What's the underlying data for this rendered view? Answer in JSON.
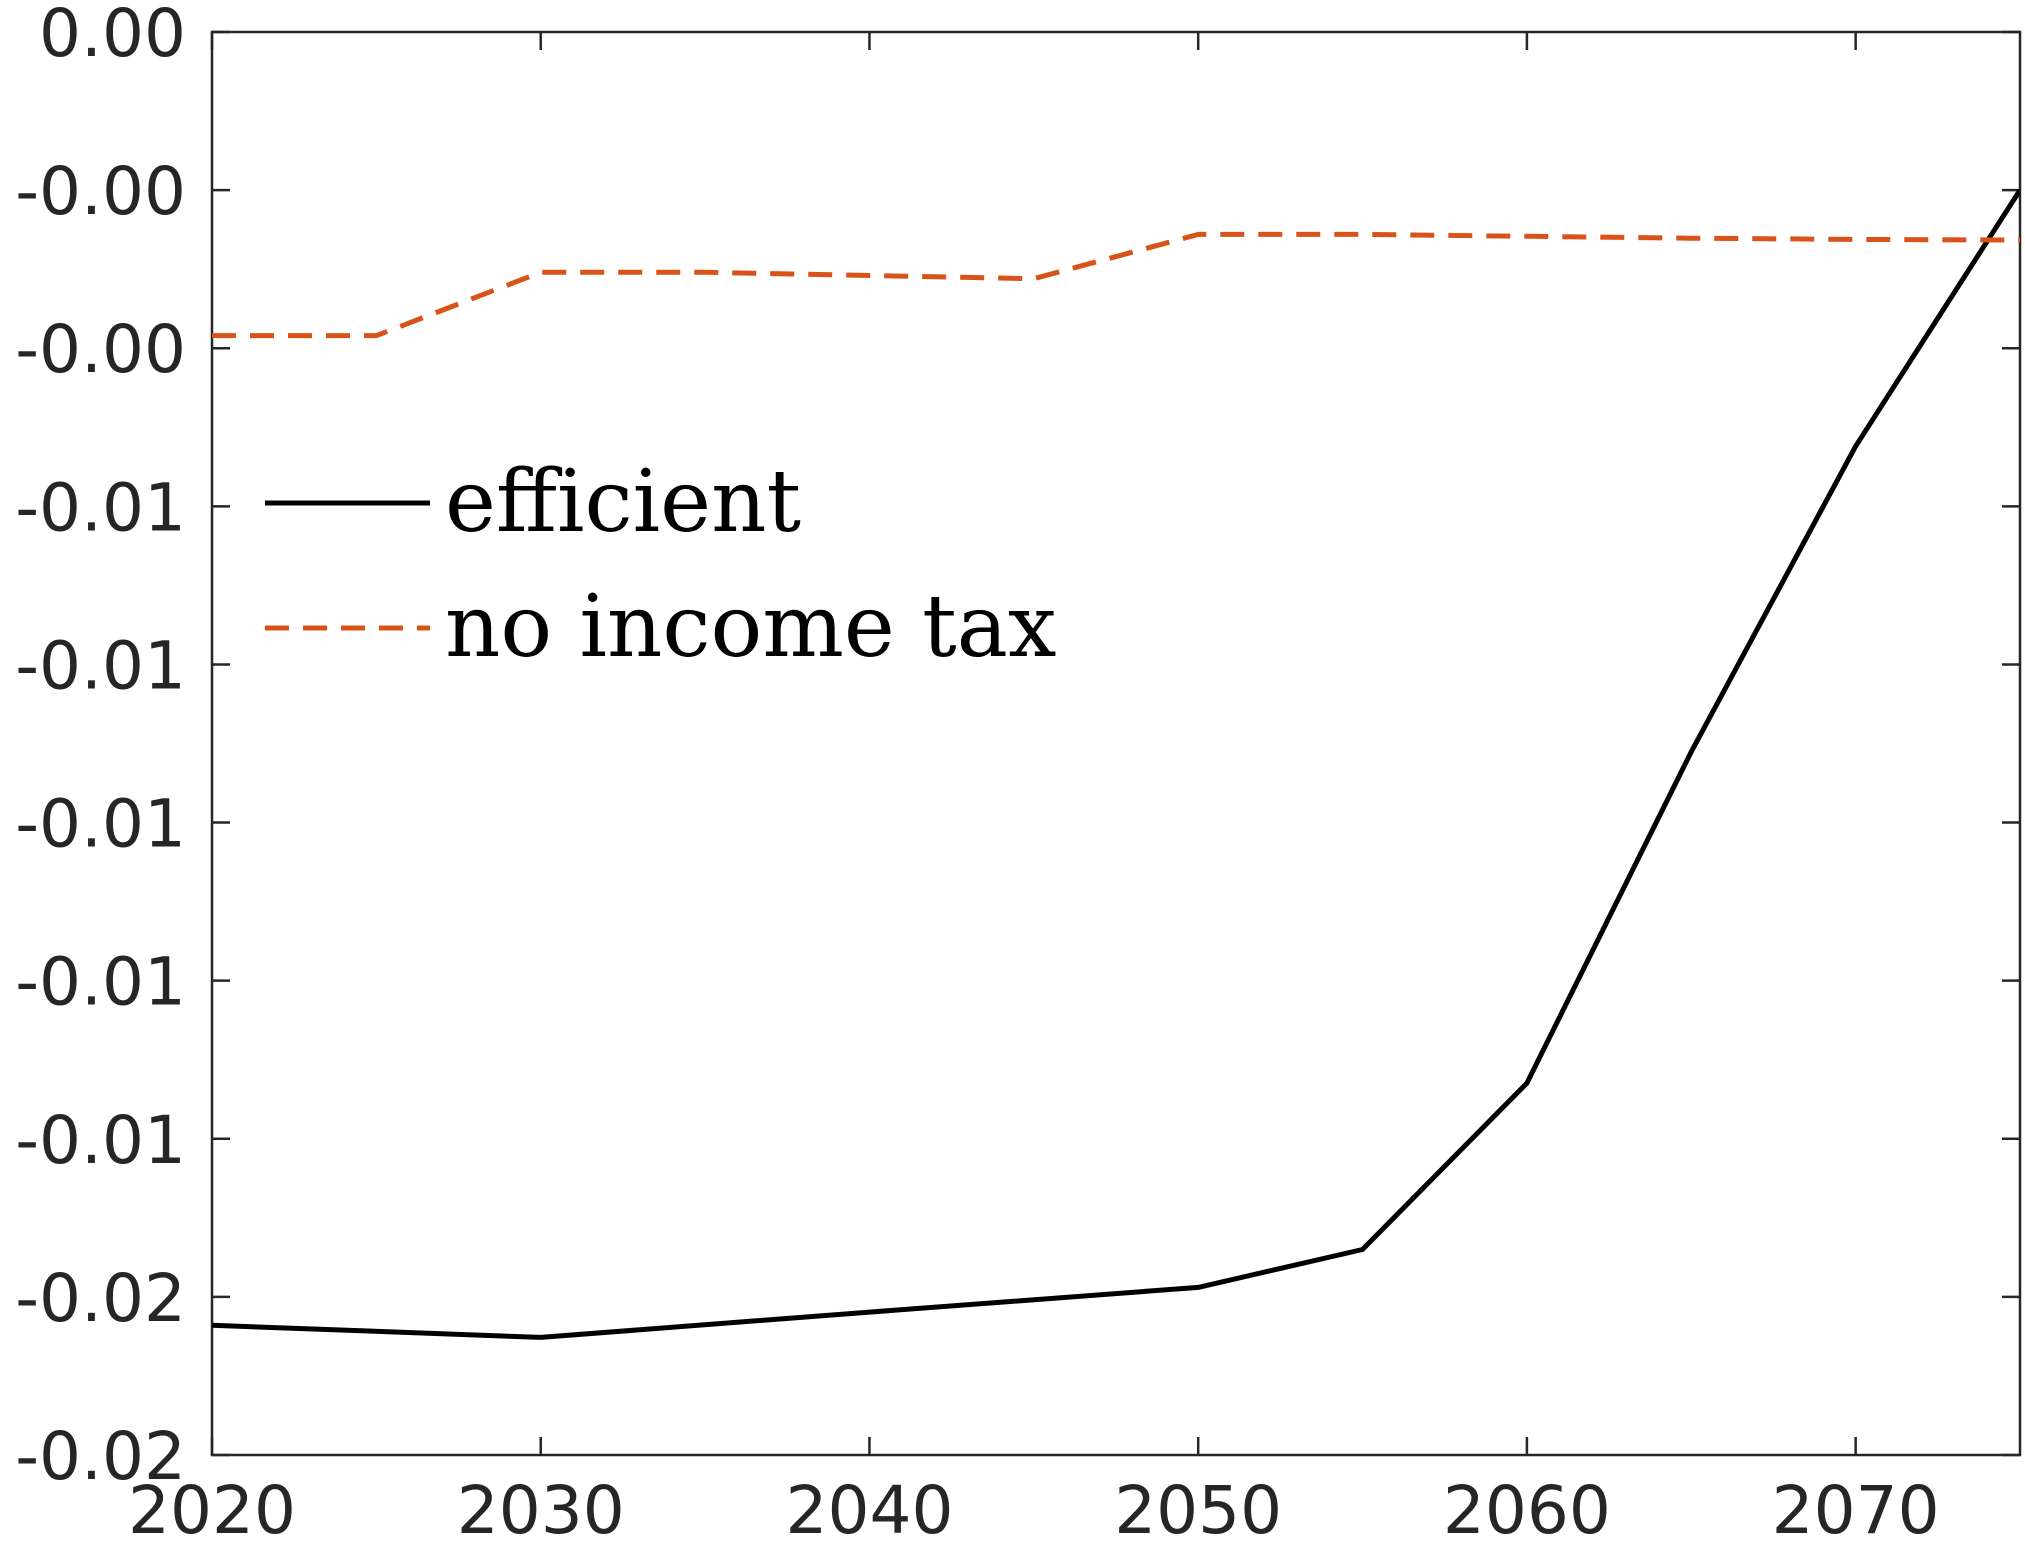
{
  "chart_data": {
    "type": "line",
    "title": "",
    "xlabel": "",
    "ylabel": "",
    "xlim": [
      2020,
      2075
    ],
    "ylim": [
      -0.0225,
      0.0
    ],
    "x_ticks": [
      2020,
      2030,
      2040,
      2050,
      2060,
      2070
    ],
    "x_tick_labels": [
      "2020",
      "2030",
      "2040",
      "2050",
      "2060",
      "2070"
    ],
    "y_ticks": [
      0.0,
      -0.0025,
      -0.005,
      -0.0075,
      -0.01,
      -0.0125,
      -0.015,
      -0.0175,
      -0.02,
      -0.0225
    ],
    "y_tick_labels": [
      "0.00",
      "-0.00",
      "-0.00",
      "-0.01",
      "-0.01",
      "-0.01",
      "-0.01",
      "-0.01",
      "-0.02",
      "-0.02"
    ],
    "grid": false,
    "legend_position": "left",
    "series": [
      {
        "name": "efficient",
        "color": "#000000",
        "line_style": "solid",
        "x": [
          2020,
          2030,
          2040,
          2050,
          2055,
          2060,
          2065,
          2070,
          2075
        ],
        "y": [
          -0.02045,
          -0.02064,
          -0.02024,
          -0.01985,
          -0.01925,
          -0.01662,
          -0.01138,
          -0.00655,
          -0.0025
        ]
      },
      {
        "name": "no income tax",
        "color": "#D95319",
        "line_style": "dashed",
        "x": [
          2020,
          2025,
          2030,
          2035,
          2045,
          2050,
          2055,
          2060,
          2065,
          2070,
          2075
        ],
        "y": [
          -0.0048,
          -0.0048,
          -0.0038,
          -0.0038,
          -0.0039,
          -0.0032,
          -0.0032,
          -0.00323,
          -0.00326,
          -0.00328,
          -0.00329
        ]
      }
    ]
  }
}
